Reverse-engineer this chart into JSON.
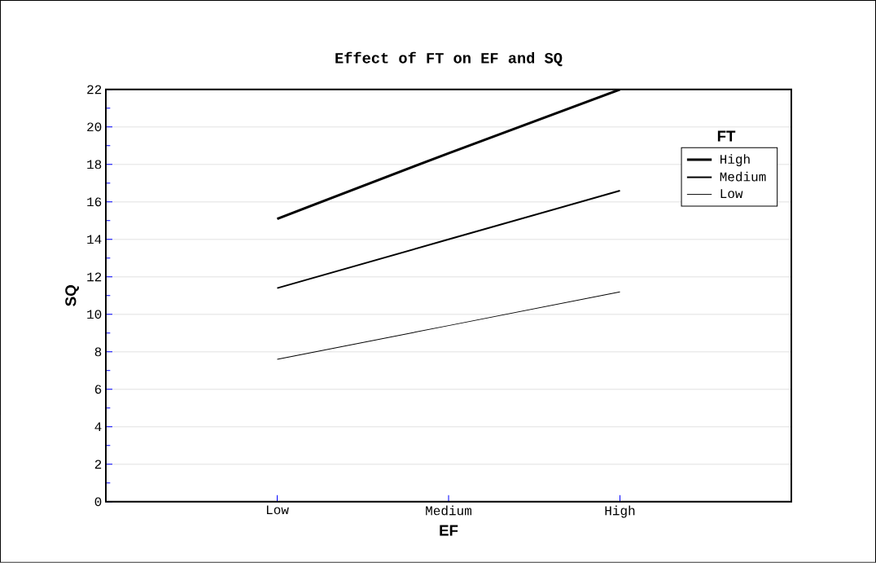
{
  "chart_data": {
    "type": "line",
    "title": "Effect of FT on EF and SQ",
    "xlabel": "EF",
    "ylabel": "SQ",
    "legend_title": "FT",
    "categories": [
      "Low",
      "Medium",
      "High"
    ],
    "series": [
      {
        "name": "High",
        "color": "#000000",
        "values": [
          15.1,
          18.6,
          22.0
        ]
      },
      {
        "name": "Medium",
        "color": "#000000",
        "values": [
          11.4,
          14.0,
          16.6
        ]
      },
      {
        "name": "Low",
        "color": "#000000",
        "values": [
          7.6,
          9.4,
          11.2
        ]
      }
    ],
    "ylim": [
      0,
      22
    ],
    "yticks": [
      0,
      2,
      4,
      6,
      8,
      10,
      12,
      14,
      16,
      18,
      20,
      22
    ],
    "grid": "y",
    "legend": "top right",
    "marker": "none",
    "line_style": "solid"
  }
}
